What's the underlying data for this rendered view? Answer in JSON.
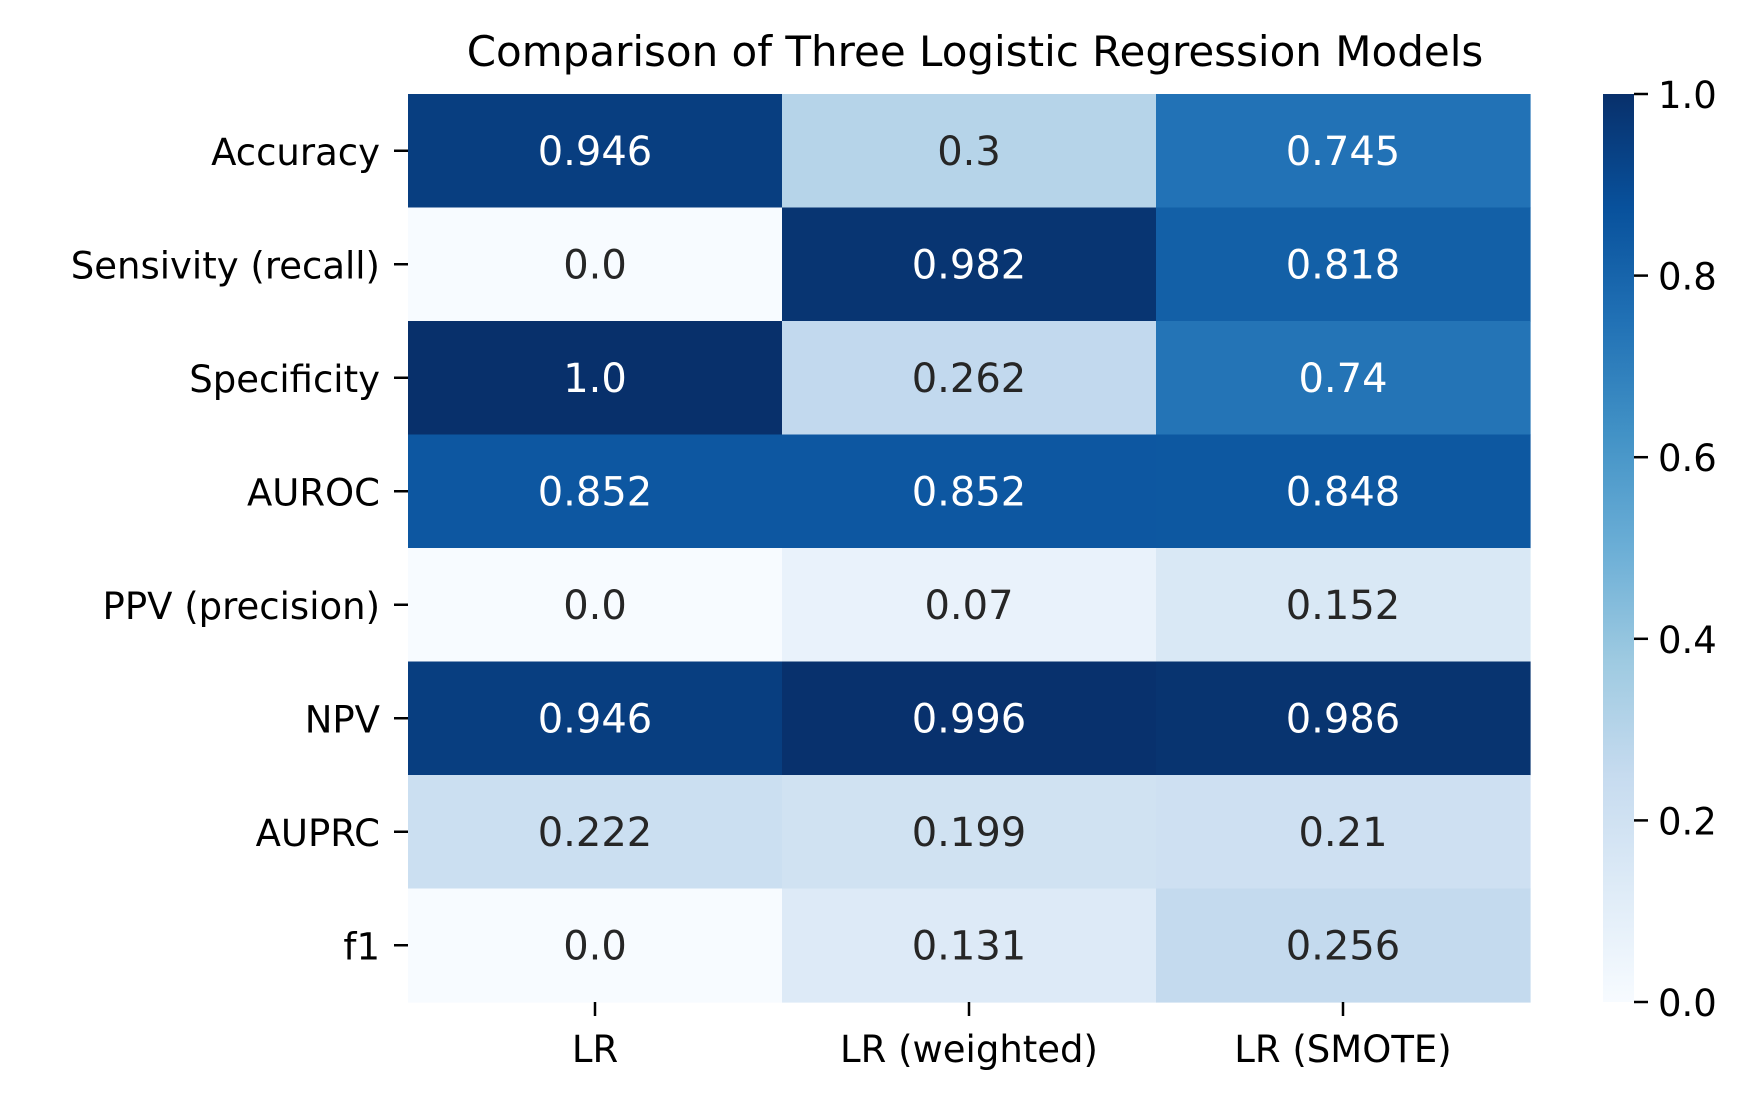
{
  "chart_data": {
    "type": "heatmap",
    "title": "Comparison of Three Logistic Regression Models",
    "xlabel": "",
    "ylabel": "",
    "columns": [
      "LR",
      "LR (weighted)",
      "LR (SMOTE)"
    ],
    "rows": [
      "Accuracy",
      "Sensivity (recall)",
      "Specificity",
      "AUROC",
      "PPV (precision)",
      "NPV",
      "AUPRC",
      "f1"
    ],
    "values": [
      [
        0.946,
        0.3,
        0.745
      ],
      [
        0.0,
        0.982,
        0.818
      ],
      [
        1.0,
        0.262,
        0.74
      ],
      [
        0.852,
        0.852,
        0.848
      ],
      [
        0.0,
        0.07,
        0.152
      ],
      [
        0.946,
        0.996,
        0.986
      ],
      [
        0.222,
        0.199,
        0.21
      ],
      [
        0.0,
        0.131,
        0.256
      ]
    ],
    "value_labels": [
      [
        "0.946",
        "0.3",
        "0.745"
      ],
      [
        "0.0",
        "0.982",
        "0.818"
      ],
      [
        "1.0",
        "0.262",
        "0.74"
      ],
      [
        "0.852",
        "0.852",
        "0.848"
      ],
      [
        "0.0",
        "0.07",
        "0.152"
      ],
      [
        "0.946",
        "0.996",
        "0.986"
      ],
      [
        "0.222",
        "0.199",
        "0.21"
      ],
      [
        "0.0",
        "0.131",
        "0.256"
      ]
    ],
    "colormap": "Blues",
    "colorbar": {
      "range": [
        0.0,
        1.0
      ],
      "ticks": [
        0.0,
        0.2,
        0.4,
        0.6,
        0.8,
        1.0
      ],
      "tick_labels": [
        "0.0",
        "0.2",
        "0.4",
        "0.6",
        "0.8",
        "1.0"
      ]
    },
    "grid": false,
    "legend": "colorbar-right"
  }
}
